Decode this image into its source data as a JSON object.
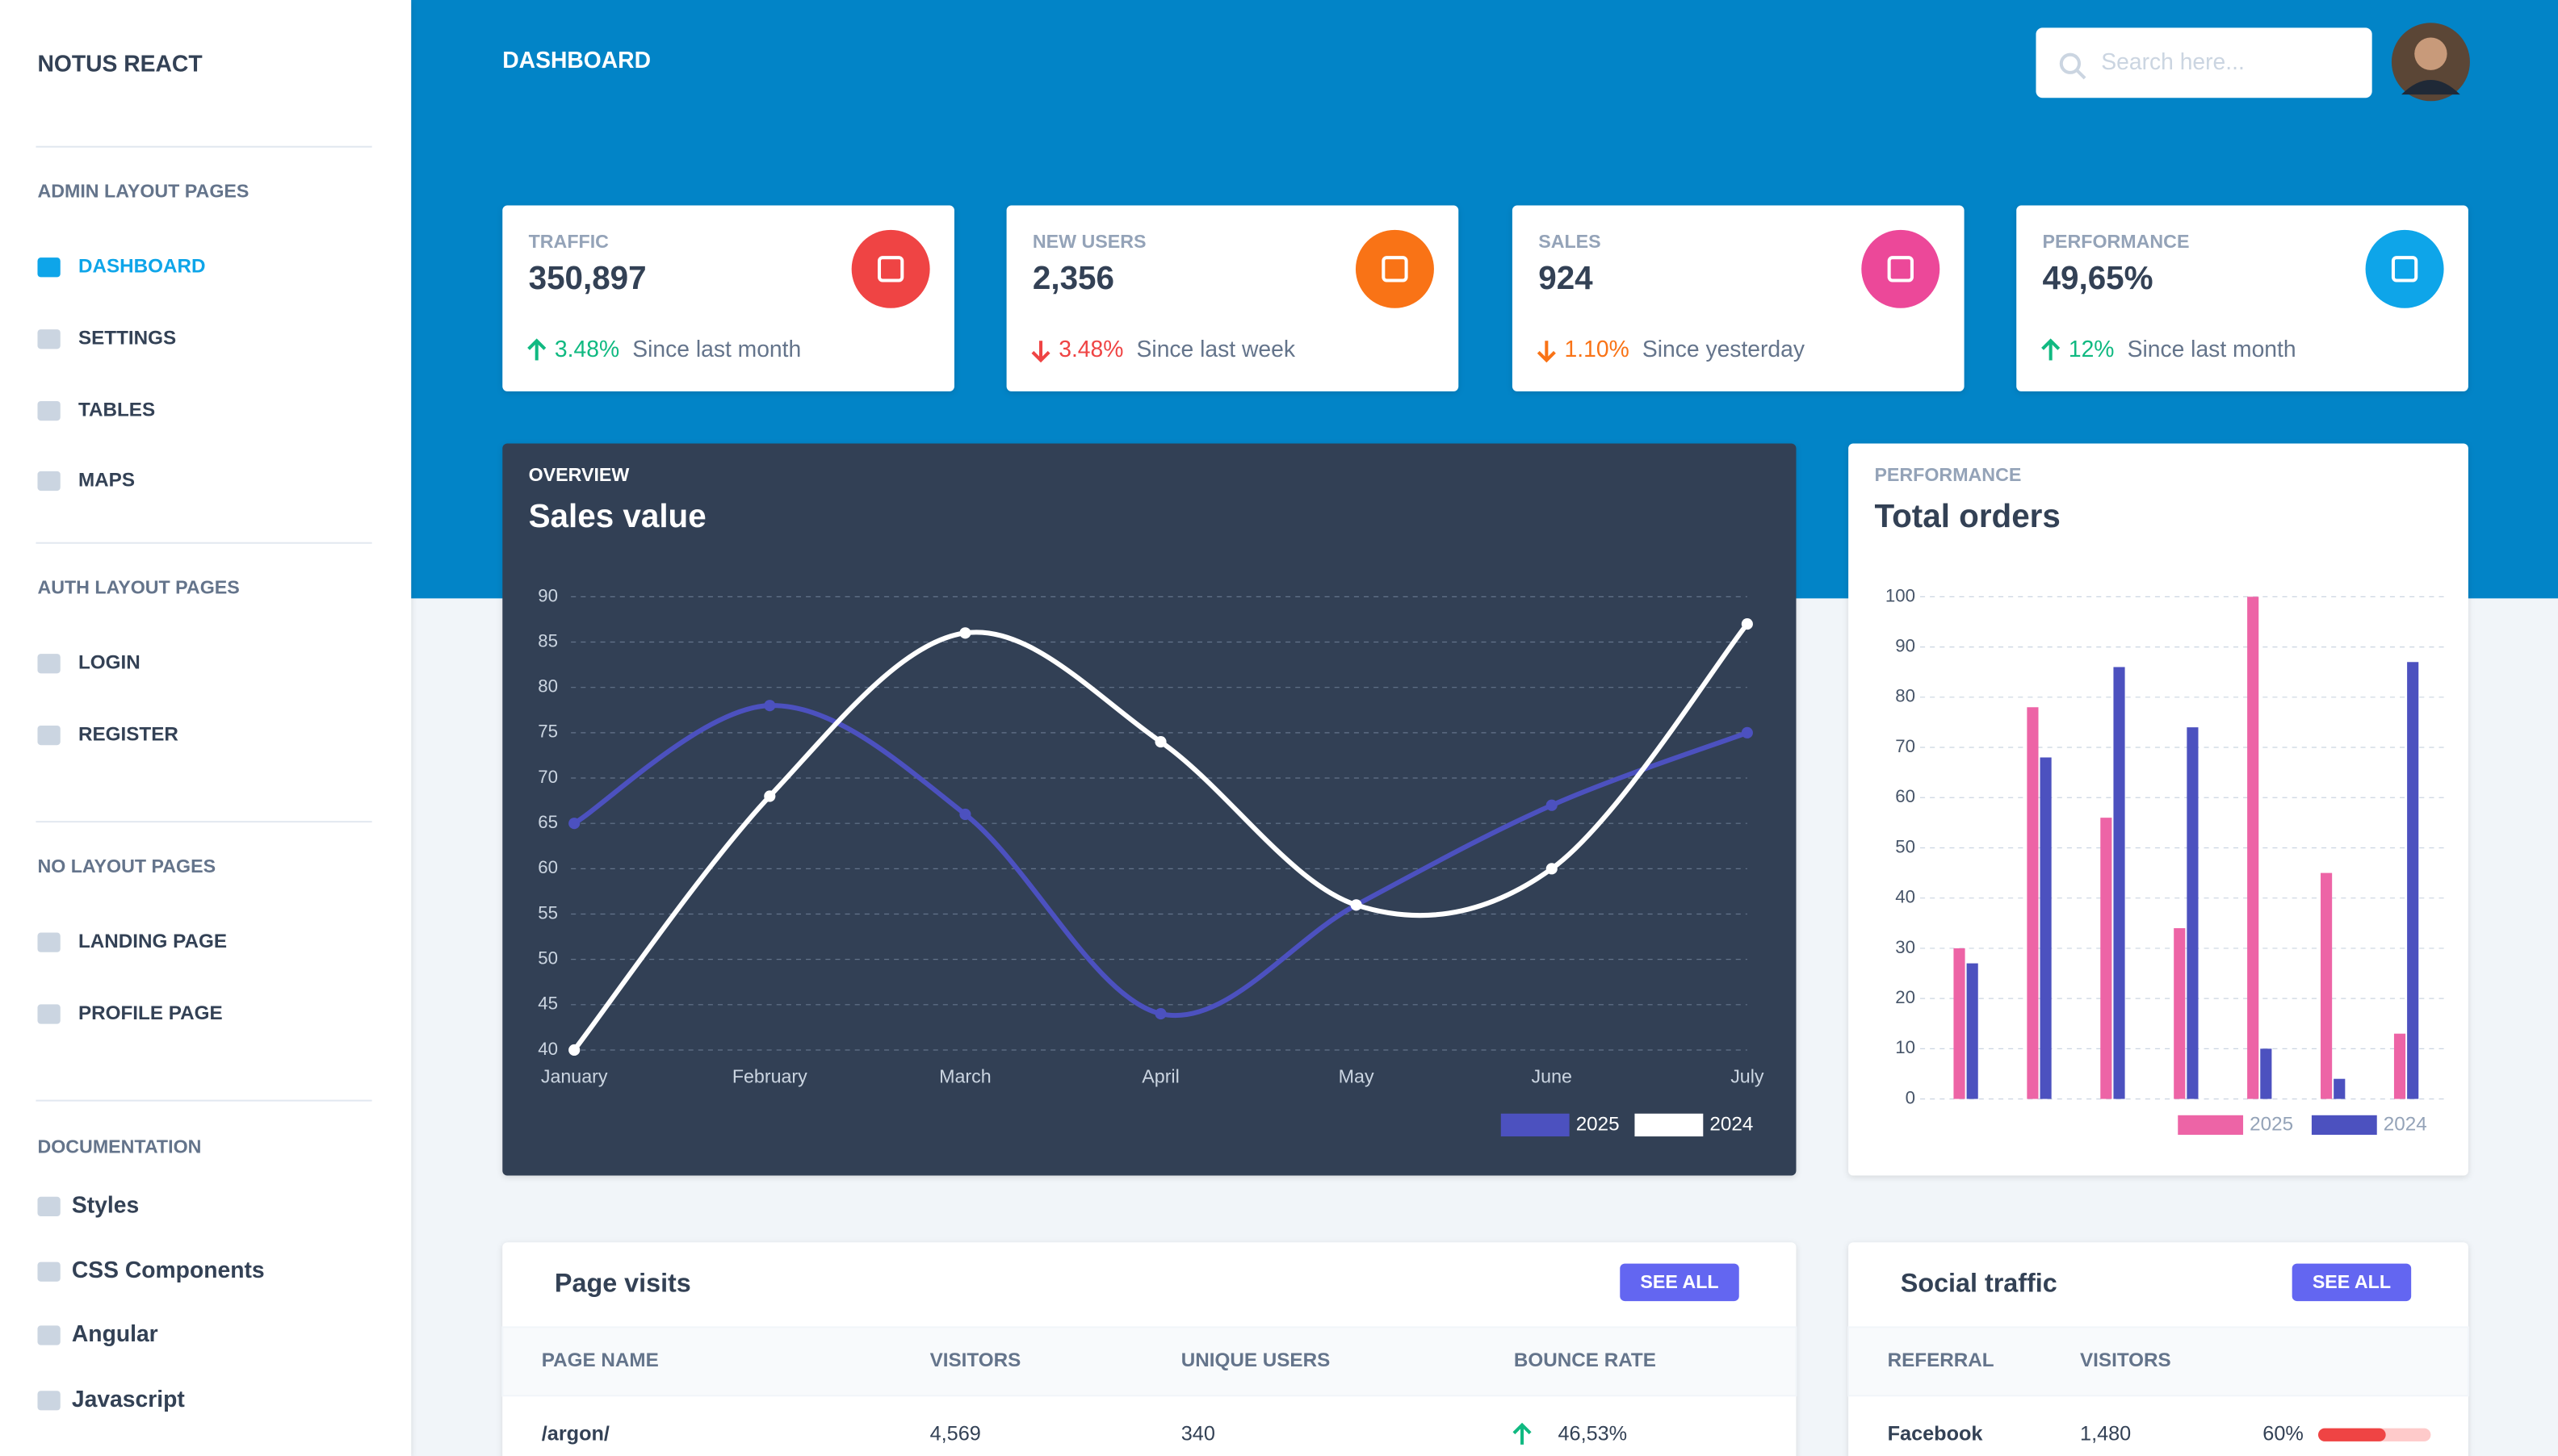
{
  "sidebar": {
    "brand": "NOTUS REACT",
    "sections": [
      {
        "heading": "ADMIN LAYOUT PAGES",
        "items": [
          "DASHBOARD",
          "SETTINGS",
          "TABLES",
          "MAPS"
        ]
      },
      {
        "heading": "AUTH LAYOUT PAGES",
        "items": [
          "LOGIN",
          "REGISTER"
        ]
      },
      {
        "heading": "NO LAYOUT PAGES",
        "items": [
          "LANDING PAGE",
          "PROFILE PAGE"
        ]
      },
      {
        "heading": "DOCUMENTATION",
        "items": [
          "Styles",
          "CSS Components",
          "Angular",
          "Javascript"
        ]
      }
    ]
  },
  "header": {
    "title": "DASHBOARD",
    "search_placeholder": "Search here..."
  },
  "stats": [
    {
      "title": "TRAFFIC",
      "value": "350,897",
      "change": "3.48%",
      "direction": "up",
      "change_color": "#10b981",
      "note": "Since last month",
      "icon_color": "#ef4444"
    },
    {
      "title": "NEW USERS",
      "value": "2,356",
      "change": "3.48%",
      "direction": "down",
      "change_color": "#ef4444",
      "note": "Since last week",
      "icon_color": "#f97316"
    },
    {
      "title": "SALES",
      "value": "924",
      "change": "1.10%",
      "direction": "down",
      "change_color": "#f97316",
      "note": "Since yesterday",
      "icon_color": "#ec4899"
    },
    {
      "title": "PERFORMANCE",
      "value": "49,65%",
      "change": "12%",
      "direction": "up",
      "change_color": "#10b981",
      "note": "Since last month",
      "icon_color": "#0ea5e9"
    }
  ],
  "chart_data": [
    {
      "type": "line",
      "subtitle": "OVERVIEW",
      "title": "Sales value",
      "categories": [
        "January",
        "February",
        "March",
        "April",
        "May",
        "June",
        "July"
      ],
      "series": [
        {
          "name": "2025",
          "color": "#4c51bf",
          "values": [
            65,
            78,
            66,
            44,
            56,
            67,
            75
          ]
        },
        {
          "name": "2024",
          "color": "#ffffff",
          "values": [
            40,
            68,
            86,
            74,
            56,
            60,
            87
          ]
        }
      ],
      "ylim": [
        40,
        90
      ],
      "yticks": [
        40,
        45,
        50,
        55,
        60,
        65,
        70,
        75,
        80,
        85,
        90
      ],
      "grid": true
    },
    {
      "type": "bar",
      "subtitle": "PERFORMANCE",
      "title": "Total orders",
      "categories": [
        null,
        null,
        null,
        null,
        null,
        null,
        null
      ],
      "series": [
        {
          "name": "2025",
          "color": "#ed64a6",
          "values": [
            30,
            78,
            56,
            34,
            100,
            45,
            13
          ]
        },
        {
          "name": "2024",
          "color": "#4c51bf",
          "values": [
            27,
            68,
            86,
            74,
            10,
            4,
            87
          ]
        }
      ],
      "ylim": [
        0,
        100
      ],
      "yticks": [
        0,
        10,
        20,
        30,
        40,
        50,
        60,
        70,
        80,
        90,
        100
      ],
      "grid": true
    }
  ],
  "page_visits": {
    "title": "Page visits",
    "button": "SEE ALL",
    "columns": [
      "PAGE NAME",
      "VISITORS",
      "UNIQUE USERS",
      "BOUNCE RATE"
    ],
    "rows": [
      [
        "/argon/",
        "4,569",
        "340",
        "46,53%"
      ]
    ]
  },
  "social_traffic": {
    "title": "Social traffic",
    "button": "SEE ALL",
    "columns": [
      "REFERRAL",
      "VISITORS"
    ],
    "rows": [
      {
        "referral": "Facebook",
        "visitors": "1,480",
        "progress": {
          "value": 60,
          "label": "60%"
        }
      }
    ]
  }
}
